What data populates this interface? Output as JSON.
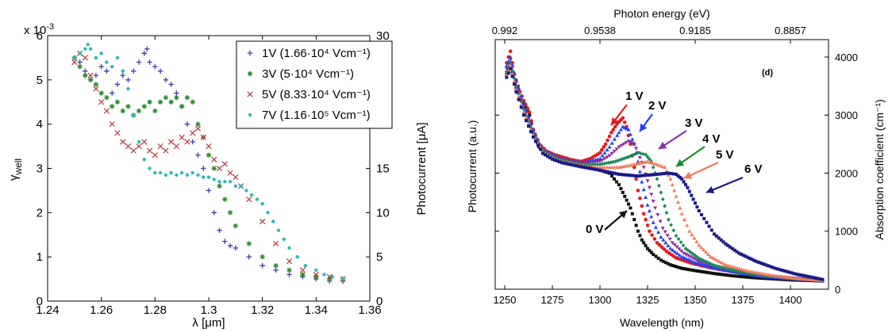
{
  "chart_data": [
    {
      "type": "scatter",
      "xlabel": "λ [μm]",
      "ylabel_main": "γ",
      "ylabel_sub": "well",
      "y2label": "Photocurrent [μA]",
      "y_multiplier": "x 10",
      "y_multiplier_exp": "-3",
      "xlim": [
        1.24,
        1.36
      ],
      "ylim": [
        0,
        6
      ],
      "y2lim": [
        0,
        30
      ],
      "xticks": [
        "1.24",
        "1.26",
        "1.28",
        "1.3",
        "1.32",
        "1.34",
        "1.36"
      ],
      "yticks": [
        "0",
        "1",
        "2",
        "3",
        "4",
        "5",
        "6"
      ],
      "y2ticks": [
        "0",
        "5",
        "10",
        "15",
        "20",
        "25",
        "30"
      ],
      "legend_position": "top-right",
      "series": [
        {
          "name": "1V (1.66·10⁴ Vcm⁻¹)",
          "marker": "plus",
          "color": "#3b3fa8",
          "x": [
            1.25,
            1.252,
            1.254,
            1.256,
            1.258,
            1.26,
            1.262,
            1.264,
            1.266,
            1.268,
            1.27,
            1.272,
            1.274,
            1.276,
            1.277,
            1.278,
            1.28,
            1.282,
            1.284,
            1.286,
            1.288,
            1.29,
            1.292,
            1.294,
            1.296,
            1.298,
            1.3,
            1.302,
            1.304,
            1.306,
            1.308,
            1.31,
            1.315,
            1.32,
            1.325,
            1.33,
            1.335,
            1.34,
            1.345,
            1.35
          ],
          "y": [
            5.5,
            5.4,
            5.2,
            5.0,
            5.1,
            5.3,
            5.2,
            4.7,
            4.9,
            5.1,
            5.0,
            5.2,
            5.4,
            5.6,
            5.7,
            5.4,
            5.3,
            5.2,
            5.0,
            4.9,
            4.7,
            4.4,
            4.0,
            3.6,
            3.3,
            3.0,
            2.5,
            2.0,
            1.6,
            1.35,
            1.25,
            1.2,
            1.0,
            0.8,
            0.7,
            0.6,
            0.55,
            0.5,
            0.45,
            0.45
          ]
        },
        {
          "name": "3V (5·10⁴ Vcm⁻¹)",
          "marker": "asterisk",
          "color": "#2e8b2e",
          "x": [
            1.25,
            1.252,
            1.254,
            1.256,
            1.258,
            1.26,
            1.262,
            1.264,
            1.266,
            1.268,
            1.27,
            1.272,
            1.274,
            1.276,
            1.278,
            1.28,
            1.282,
            1.284,
            1.286,
            1.288,
            1.29,
            1.292,
            1.294,
            1.296,
            1.298,
            1.3,
            1.302,
            1.304,
            1.306,
            1.308,
            1.31,
            1.315,
            1.32,
            1.325,
            1.33,
            1.335,
            1.34,
            1.345,
            1.35
          ],
          "y": [
            5.5,
            5.3,
            5.1,
            5.0,
            4.9,
            4.7,
            4.6,
            4.4,
            4.5,
            4.3,
            4.4,
            4.2,
            4.3,
            4.4,
            4.5,
            4.3,
            4.5,
            4.6,
            4.5,
            4.6,
            4.4,
            4.6,
            4.5,
            4.0,
            3.7,
            3.3,
            3.0,
            2.6,
            2.3,
            2.0,
            1.7,
            1.3,
            1.0,
            0.8,
            0.7,
            0.6,
            0.55,
            0.5,
            0.5
          ]
        },
        {
          "name": "5V (8.33·10⁴ Vcm⁻¹)",
          "marker": "cross",
          "color": "#b53a3a",
          "x": [
            1.25,
            1.252,
            1.254,
            1.256,
            1.258,
            1.26,
            1.262,
            1.264,
            1.266,
            1.268,
            1.27,
            1.272,
            1.274,
            1.276,
            1.278,
            1.28,
            1.282,
            1.284,
            1.286,
            1.288,
            1.29,
            1.292,
            1.294,
            1.296,
            1.298,
            1.3,
            1.302,
            1.304,
            1.306,
            1.308,
            1.31,
            1.312,
            1.315,
            1.32,
            1.325,
            1.33,
            1.335,
            1.34,
            1.345,
            1.35
          ],
          "y": [
            5.4,
            5.6,
            5.5,
            5.1,
            4.8,
            4.5,
            4.3,
            4.0,
            3.8,
            3.6,
            3.5,
            3.4,
            3.5,
            3.6,
            3.4,
            3.3,
            3.5,
            3.4,
            3.6,
            3.5,
            3.7,
            3.6,
            3.8,
            3.9,
            3.7,
            3.5,
            3.2,
            3.0,
            3.1,
            2.9,
            2.8,
            2.6,
            2.3,
            1.8,
            1.3,
            0.9,
            0.7,
            0.6,
            0.55,
            0.5
          ]
        },
        {
          "name": "7V (1.16·10⁵ Vcm⁻¹)",
          "marker": "dot",
          "color": "#2fb8b8",
          "x": [
            1.25,
            1.252,
            1.254,
            1.255,
            1.256,
            1.258,
            1.26,
            1.262,
            1.264,
            1.266,
            1.268,
            1.27,
            1.272,
            1.274,
            1.276,
            1.278,
            1.28,
            1.282,
            1.284,
            1.286,
            1.288,
            1.29,
            1.292,
            1.294,
            1.296,
            1.298,
            1.3,
            1.302,
            1.304,
            1.306,
            1.308,
            1.31,
            1.312,
            1.314,
            1.316,
            1.318,
            1.32,
            1.322,
            1.324,
            1.326,
            1.328,
            1.33,
            1.333,
            1.336,
            1.34,
            1.343,
            1.346,
            1.35
          ],
          "y": [
            5.5,
            5.6,
            5.7,
            5.8,
            5.7,
            5.5,
            5.6,
            5.4,
            5.3,
            5.5,
            5.2,
            4.8,
            4.2,
            3.6,
            3.2,
            3.0,
            2.9,
            2.9,
            2.85,
            2.9,
            2.85,
            2.9,
            2.85,
            2.9,
            2.85,
            2.8,
            2.8,
            2.75,
            2.7,
            2.7,
            2.7,
            2.6,
            2.6,
            2.5,
            2.4,
            2.3,
            2.2,
            2.0,
            1.8,
            1.6,
            1.4,
            1.2,
            1.0,
            0.8,
            0.7,
            0.6,
            0.55,
            0.5
          ]
        }
      ]
    },
    {
      "type": "scatter",
      "xlabel": "Wavelength (nm)",
      "ylabel": "Photocurrent (a.u.)",
      "y2label": "Absorption coefficient (cm⁻¹)",
      "top_xlabel": "Photon energy (eV)",
      "panel_label": "(d)",
      "xlim": [
        1245,
        1420
      ],
      "ylim": [
        0,
        4300
      ],
      "xticks": [
        "1250",
        "1275",
        "1300",
        "1325",
        "1350",
        "1375",
        "1400"
      ],
      "y2ticks": [
        "0",
        "1000",
        "2000",
        "3000",
        "4000"
      ],
      "top_xticks": [
        "0.992",
        "0.9538",
        "0.9185",
        "0.8857"
      ],
      "top_xtick_positions_nm": [
        1250,
        1300,
        1350,
        1400
      ],
      "series": [
        {
          "name": "0 V",
          "color": "#111111",
          "marker": "square",
          "x": [
            1251,
            1253,
            1255,
            1258,
            1260,
            1263,
            1265,
            1268,
            1272,
            1276,
            1280,
            1285,
            1290,
            1295,
            1300,
            1305,
            1310,
            1313,
            1316,
            1318,
            1320,
            1322,
            1325,
            1328,
            1332,
            1337,
            1343,
            1350,
            1360,
            1370,
            1380,
            1390,
            1400,
            1410,
            1418
          ],
          "y": [
            3700,
            3900,
            3550,
            3300,
            3200,
            3000,
            2700,
            2450,
            2350,
            2300,
            2250,
            2200,
            2150,
            2100,
            2050,
            2000,
            1800,
            1600,
            1400,
            1200,
            1000,
            850,
            700,
            600,
            500,
            420,
            360,
            320,
            270,
            230,
            200,
            180,
            160,
            150,
            140
          ]
        },
        {
          "name": "1 V",
          "color": "#e41a1c",
          "marker": "circle",
          "x": [
            1251,
            1253,
            1255,
            1258,
            1260,
            1263,
            1265,
            1268,
            1272,
            1276,
            1280,
            1285,
            1290,
            1295,
            1300,
            1303,
            1306,
            1309,
            1312,
            1314,
            1316,
            1318,
            1320,
            1323,
            1326,
            1330,
            1335,
            1340,
            1348,
            1358,
            1370,
            1380,
            1390,
            1400,
            1410,
            1418
          ],
          "y": [
            3900,
            4100,
            3700,
            3400,
            3250,
            3050,
            2750,
            2500,
            2380,
            2320,
            2280,
            2230,
            2200,
            2250,
            2350,
            2500,
            2700,
            2850,
            2950,
            2800,
            2500,
            2100,
            1700,
            1300,
            1000,
            800,
            650,
            540,
            450,
            370,
            300,
            250,
            210,
            180,
            160,
            150
          ]
        },
        {
          "name": "2 V",
          "color": "#1f3fff",
          "marker": "triangle",
          "x": [
            1251,
            1253,
            1256,
            1260,
            1265,
            1270,
            1275,
            1280,
            1290,
            1300,
            1305,
            1309,
            1312,
            1315,
            1318,
            1320,
            1322,
            1325,
            1328,
            1332,
            1337,
            1343,
            1350,
            1360,
            1372,
            1385,
            1400,
            1418
          ],
          "y": [
            3850,
            4000,
            3600,
            3200,
            2750,
            2400,
            2320,
            2250,
            2180,
            2250,
            2450,
            2650,
            2800,
            2750,
            2500,
            2200,
            1850,
            1450,
            1150,
            900,
            700,
            560,
            460,
            370,
            290,
            220,
            180,
            150
          ]
        },
        {
          "name": "3 V",
          "color": "#8b2fa8",
          "marker": "triangle-down",
          "x": [
            1251,
            1253,
            1256,
            1260,
            1265,
            1270,
            1275,
            1280,
            1290,
            1300,
            1305,
            1310,
            1315,
            1318,
            1320,
            1323,
            1326,
            1329,
            1333,
            1338,
            1344,
            1352,
            1362,
            1375,
            1390,
            1405,
            1418
          ],
          "y": [
            3800,
            3950,
            3550,
            3150,
            2700,
            2400,
            2300,
            2230,
            2160,
            2200,
            2300,
            2450,
            2550,
            2500,
            2350,
            2100,
            1750,
            1400,
            1050,
            800,
            620,
            480,
            380,
            290,
            220,
            180,
            150
          ]
        },
        {
          "name": "4 V",
          "color": "#1a8a5a",
          "marker": "diamond",
          "x": [
            1251,
            1253,
            1256,
            1260,
            1265,
            1270,
            1275,
            1280,
            1290,
            1300,
            1308,
            1315,
            1320,
            1324,
            1327,
            1330,
            1333,
            1336,
            1340,
            1345,
            1352,
            1360,
            1372,
            1385,
            1400,
            1418
          ],
          "y": [
            3750,
            3900,
            3500,
            3100,
            2680,
            2380,
            2280,
            2220,
            2150,
            2150,
            2200,
            2280,
            2350,
            2320,
            2200,
            1900,
            1550,
            1200,
            920,
            700,
            530,
            410,
            310,
            240,
            190,
            150
          ]
        },
        {
          "name": "5 V",
          "color": "#f07a5a",
          "marker": "triangle",
          "x": [
            1251,
            1253,
            1256,
            1260,
            1265,
            1270,
            1275,
            1280,
            1290,
            1300,
            1310,
            1318,
            1325,
            1330,
            1334,
            1337,
            1340,
            1343,
            1347,
            1352,
            1358,
            1366,
            1378,
            1392,
            1405,
            1418
          ],
          "y": [
            3700,
            3850,
            3450,
            3050,
            2650,
            2360,
            2260,
            2200,
            2130,
            2100,
            2100,
            2150,
            2200,
            2150,
            2100,
            1900,
            1600,
            1300,
            1000,
            760,
            560,
            420,
            310,
            230,
            180,
            150
          ]
        },
        {
          "name": "6 V",
          "color": "#1a1a8a",
          "marker": "square",
          "x": [
            1251,
            1253,
            1256,
            1260,
            1265,
            1270,
            1275,
            1280,
            1290,
            1300,
            1310,
            1320,
            1330,
            1336,
            1340,
            1343,
            1346,
            1349,
            1352,
            1356,
            1360,
            1366,
            1373,
            1382,
            1392,
            1403,
            1412,
            1418
          ],
          "y": [
            3650,
            3800,
            3400,
            3000,
            2620,
            2340,
            2240,
            2180,
            2110,
            2050,
            1980,
            1950,
            1980,
            2000,
            1980,
            1900,
            1750,
            1550,
            1350,
            1150,
            950,
            780,
            620,
            480,
            360,
            260,
            200,
            160
          ]
        }
      ],
      "annotations": [
        {
          "text": "1 V",
          "color": "#e41a1c"
        },
        {
          "text": "2 V",
          "color": "#1f3fff"
        },
        {
          "text": "3 V",
          "color": "#8b2fa8"
        },
        {
          "text": "4 V",
          "color": "#1a8a2a"
        },
        {
          "text": "5 V",
          "color": "#f07a5a"
        },
        {
          "text": "6 V",
          "color": "#1a1a8a"
        },
        {
          "text": "0 V",
          "color": "#111111"
        }
      ]
    }
  ]
}
